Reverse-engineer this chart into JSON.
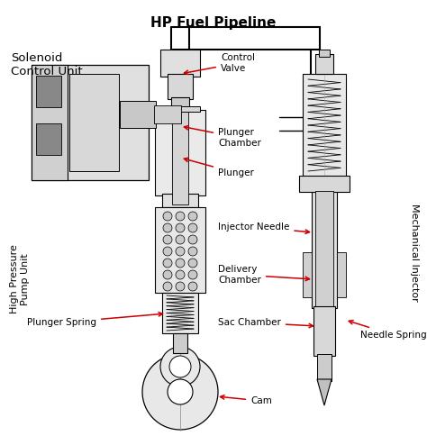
{
  "title": "HP Fuel Pipeline",
  "background_color": "#ffffff",
  "line_color": "#000000",
  "arrow_color": "#cc0000",
  "fig_width": 4.74,
  "fig_height": 4.94,
  "dpi": 100,
  "labels": {
    "solenoid": "Solenoid\nControl Unit",
    "control_valve": "Control\nValve",
    "plunger_chamber": "Plunger\nChamber",
    "plunger": "Plunger",
    "injector_needle": "Injector Needle",
    "delivery_chamber": "Delivery\nChamber",
    "sac_chamber": "Sac Chamber",
    "needle_spring": "Needle Spring",
    "plunger_spring": "Plunger Spring",
    "cam": "Cam",
    "hp_pump_unit": "High Pressure\nPump Unit",
    "mechanical_injector": "Mechanical Injector"
  }
}
